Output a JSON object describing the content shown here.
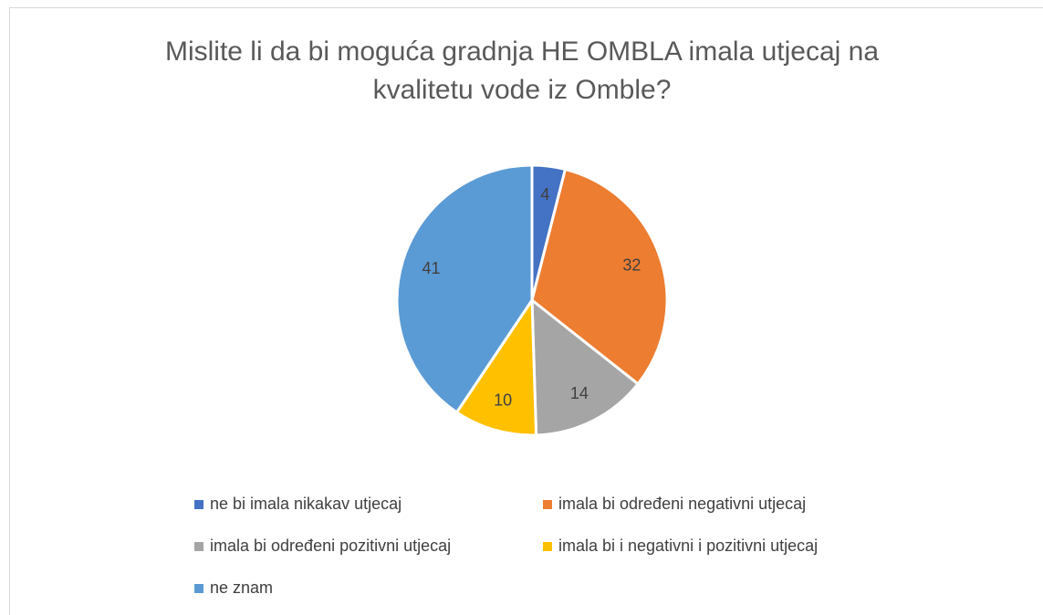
{
  "chart_data": {
    "type": "pie",
    "title": "Mislite li da bi moguća gradnja HE OMBLA imala utjecaj na kvalitetu vode iz Omble?",
    "categories": [
      "ne bi imala nikakav utjecaj",
      "imala bi određeni negativni utjecaj",
      "imala bi određeni pozitivni utjecaj",
      "imala bi i negativni i pozitivni utjecaj",
      "ne znam"
    ],
    "values": [
      4,
      32,
      14,
      10,
      41
    ],
    "colors": [
      "#4472c4",
      "#ed7d31",
      "#a5a5a5",
      "#ffc000",
      "#5b9bd5"
    ],
    "legend": "bottom"
  }
}
